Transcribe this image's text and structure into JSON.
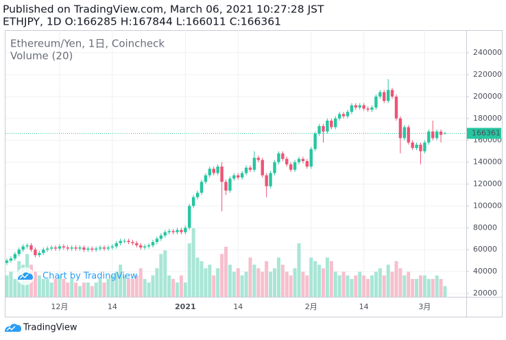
{
  "header": {
    "published": "Published on TradingView.com, March 06, 2021 10:27:28 JST",
    "symbol_line": "ETHJPY, 1D O:166285 H:167844 L:166011 C:166361"
  },
  "chart_data": {
    "type": "candlestick",
    "title": "Ethereum/Yen, 1日, Coincheck",
    "volume_title": "Volume (20)",
    "categories": [
      null,
      null,
      null,
      null,
      null,
      null,
      null,
      null,
      null,
      null,
      null,
      null,
      null,
      "12月",
      null,
      null,
      null,
      null,
      null,
      null,
      null,
      null,
      null,
      null,
      null,
      null,
      "14",
      null,
      null,
      null,
      null,
      null,
      null,
      null,
      null,
      null,
      null,
      null,
      null,
      null,
      null,
      null,
      null,
      null,
      "2021",
      null,
      null,
      null,
      null,
      null,
      null,
      null,
      null,
      null,
      null,
      null,
      null,
      "14",
      null,
      null,
      null,
      null,
      null,
      null,
      null,
      null,
      null,
      null,
      null,
      null,
      null,
      null,
      null,
      null,
      null,
      "2月",
      null,
      null,
      null,
      null,
      null,
      null,
      null,
      null,
      null,
      null,
      null,
      null,
      "14",
      null,
      null,
      null,
      null,
      null,
      null,
      null,
      null,
      null,
      null,
      null,
      null,
      null,
      null,
      "3月",
      null,
      null,
      null,
      null,
      null
    ],
    "open": [
      48000,
      50000,
      52000,
      56000,
      60000,
      63000,
      64000,
      60000,
      55000,
      57000,
      60000,
      61000,
      62000,
      61000,
      63000,
      62000,
      61000,
      62000,
      61000,
      62000,
      60000,
      61000,
      60000,
      61000,
      62000,
      61000,
      62000,
      63000,
      66000,
      68000,
      68000,
      67000,
      66000,
      64000,
      62000,
      63000,
      64000,
      67000,
      70000,
      73000,
      76000,
      77000,
      76000,
      78000,
      76000,
      80000,
      100000,
      108000,
      112000,
      122000,
      128000,
      134000,
      130000,
      136000,
      122000,
      114000,
      125000,
      128000,
      126000,
      130000,
      135000,
      133000,
      144000,
      142000,
      128000,
      118000,
      130000,
      140000,
      148000,
      143000,
      138000,
      133000,
      140000,
      143000,
      141000,
      136000,
      152000,
      166000,
      173000,
      168000,
      178000,
      172000,
      180000,
      184000,
      182000,
      186000,
      192000,
      190000,
      192000,
      189000,
      188000,
      190000,
      200000,
      204000,
      196000,
      206000,
      200000,
      180000,
      162000,
      172000,
      158000,
      153000,
      156000,
      150000,
      158000,
      168000,
      162000,
      168000,
      166285
    ],
    "high": [
      52000,
      54000,
      58000,
      62000,
      65000,
      66000,
      66000,
      62000,
      59000,
      62000,
      63000,
      64000,
      64000,
      65000,
      65000,
      64000,
      64000,
      64000,
      64000,
      64000,
      63000,
      63000,
      63000,
      64000,
      64000,
      64000,
      65000,
      68000,
      70000,
      70000,
      70000,
      69000,
      68000,
      66000,
      65000,
      66000,
      69000,
      72000,
      75000,
      78000,
      79000,
      79000,
      80000,
      80000,
      82000,
      102000,
      110000,
      114000,
      124000,
      130000,
      136000,
      136000,
      138000,
      140000,
      124000,
      127000,
      130000,
      130000,
      132000,
      137000,
      137000,
      150000,
      146000,
      144000,
      130000,
      132000,
      142000,
      150000,
      150000,
      145000,
      140000,
      142000,
      145000,
      145000,
      143000,
      154000,
      168000,
      175000,
      175000,
      180000,
      180000,
      182000,
      186000,
      186000,
      188000,
      194000,
      194000,
      194000,
      194000,
      191000,
      192000,
      202000,
      206000,
      206000,
      216000,
      208000,
      202000,
      182000,
      174000,
      174000,
      160000,
      158000,
      158000,
      160000,
      170000,
      178000,
      170000,
      170000,
      167844
    ],
    "low": [
      46000,
      48000,
      50000,
      54000,
      58000,
      61000,
      58000,
      53000,
      53000,
      55000,
      58000,
      59000,
      59000,
      59000,
      60000,
      59000,
      59000,
      59000,
      59000,
      58000,
      58000,
      58000,
      58000,
      59000,
      59000,
      59000,
      60000,
      61000,
      64000,
      66000,
      65000,
      64000,
      62000,
      60000,
      60000,
      61000,
      62000,
      65000,
      68000,
      71000,
      74000,
      74000,
      74000,
      74000,
      74000,
      78000,
      98000,
      106000,
      110000,
      120000,
      126000,
      128000,
      128000,
      95000,
      110000,
      112000,
      123000,
      124000,
      124000,
      128000,
      131000,
      131000,
      140000,
      126000,
      108000,
      116000,
      128000,
      138000,
      141000,
      136000,
      131000,
      131000,
      138000,
      139000,
      134000,
      134000,
      150000,
      164000,
      158000,
      166000,
      170000,
      170000,
      178000,
      180000,
      180000,
      184000,
      188000,
      188000,
      187000,
      186000,
      186000,
      188000,
      198000,
      194000,
      194000,
      198000,
      178000,
      148000,
      160000,
      156000,
      151000,
      151000,
      138000,
      148000,
      156000,
      160000,
      160000,
      158000,
      166011
    ],
    "close": [
      50000,
      52000,
      56000,
      60000,
      63000,
      64000,
      60000,
      55000,
      57000,
      60000,
      61000,
      62000,
      61000,
      63000,
      62000,
      61000,
      62000,
      61000,
      62000,
      60000,
      61000,
      60000,
      61000,
      62000,
      61000,
      62000,
      63000,
      66000,
      68000,
      68000,
      67000,
      66000,
      64000,
      62000,
      63000,
      64000,
      67000,
      70000,
      73000,
      76000,
      77000,
      76000,
      78000,
      76000,
      80000,
      100000,
      108000,
      112000,
      122000,
      128000,
      134000,
      130000,
      136000,
      122000,
      114000,
      125000,
      128000,
      126000,
      130000,
      135000,
      133000,
      144000,
      142000,
      128000,
      118000,
      130000,
      140000,
      148000,
      143000,
      138000,
      133000,
      140000,
      143000,
      141000,
      136000,
      152000,
      166000,
      173000,
      168000,
      178000,
      172000,
      180000,
      184000,
      182000,
      186000,
      192000,
      190000,
      192000,
      189000,
      188000,
      190000,
      200000,
      204000,
      196000,
      206000,
      200000,
      180000,
      162000,
      172000,
      158000,
      153000,
      156000,
      150000,
      158000,
      168000,
      162000,
      168000,
      165000,
      166361
    ],
    "volume": [
      30,
      35,
      25,
      50,
      45,
      60,
      45,
      35,
      30,
      25,
      25,
      20,
      25,
      30,
      25,
      20,
      25,
      20,
      15,
      20,
      20,
      15,
      20,
      25,
      20,
      25,
      30,
      35,
      45,
      30,
      25,
      25,
      30,
      40,
      25,
      20,
      30,
      40,
      60,
      65,
      30,
      25,
      20,
      30,
      20,
      75,
      96,
      55,
      50,
      40,
      45,
      30,
      40,
      60,
      70,
      45,
      35,
      40,
      30,
      35,
      55,
      45,
      40,
      35,
      50,
      35,
      40,
      55,
      45,
      35,
      30,
      40,
      75,
      35,
      30,
      55,
      50,
      45,
      40,
      55,
      50,
      35,
      30,
      35,
      30,
      25,
      30,
      35,
      30,
      25,
      30,
      35,
      40,
      30,
      45,
      35,
      50,
      40,
      30,
      35,
      25,
      25,
      30,
      30,
      25,
      25,
      30,
      25,
      15
    ],
    "up_color": "#26c6a0",
    "down_color": "#ef5375",
    "up_volume_color": "#a8e6d6",
    "down_volume_color": "#f7bfcd",
    "ylim": [
      16900,
      260700
    ],
    "yticks": [
      20000,
      40000,
      60000,
      80000,
      100000,
      120000,
      140000,
      160000,
      180000,
      200000,
      220000,
      240000
    ],
    "grid": true,
    "last_price_line": true
  },
  "watermark": "Chart by TradingView",
  "footer": {
    "logo": "TradingView"
  }
}
